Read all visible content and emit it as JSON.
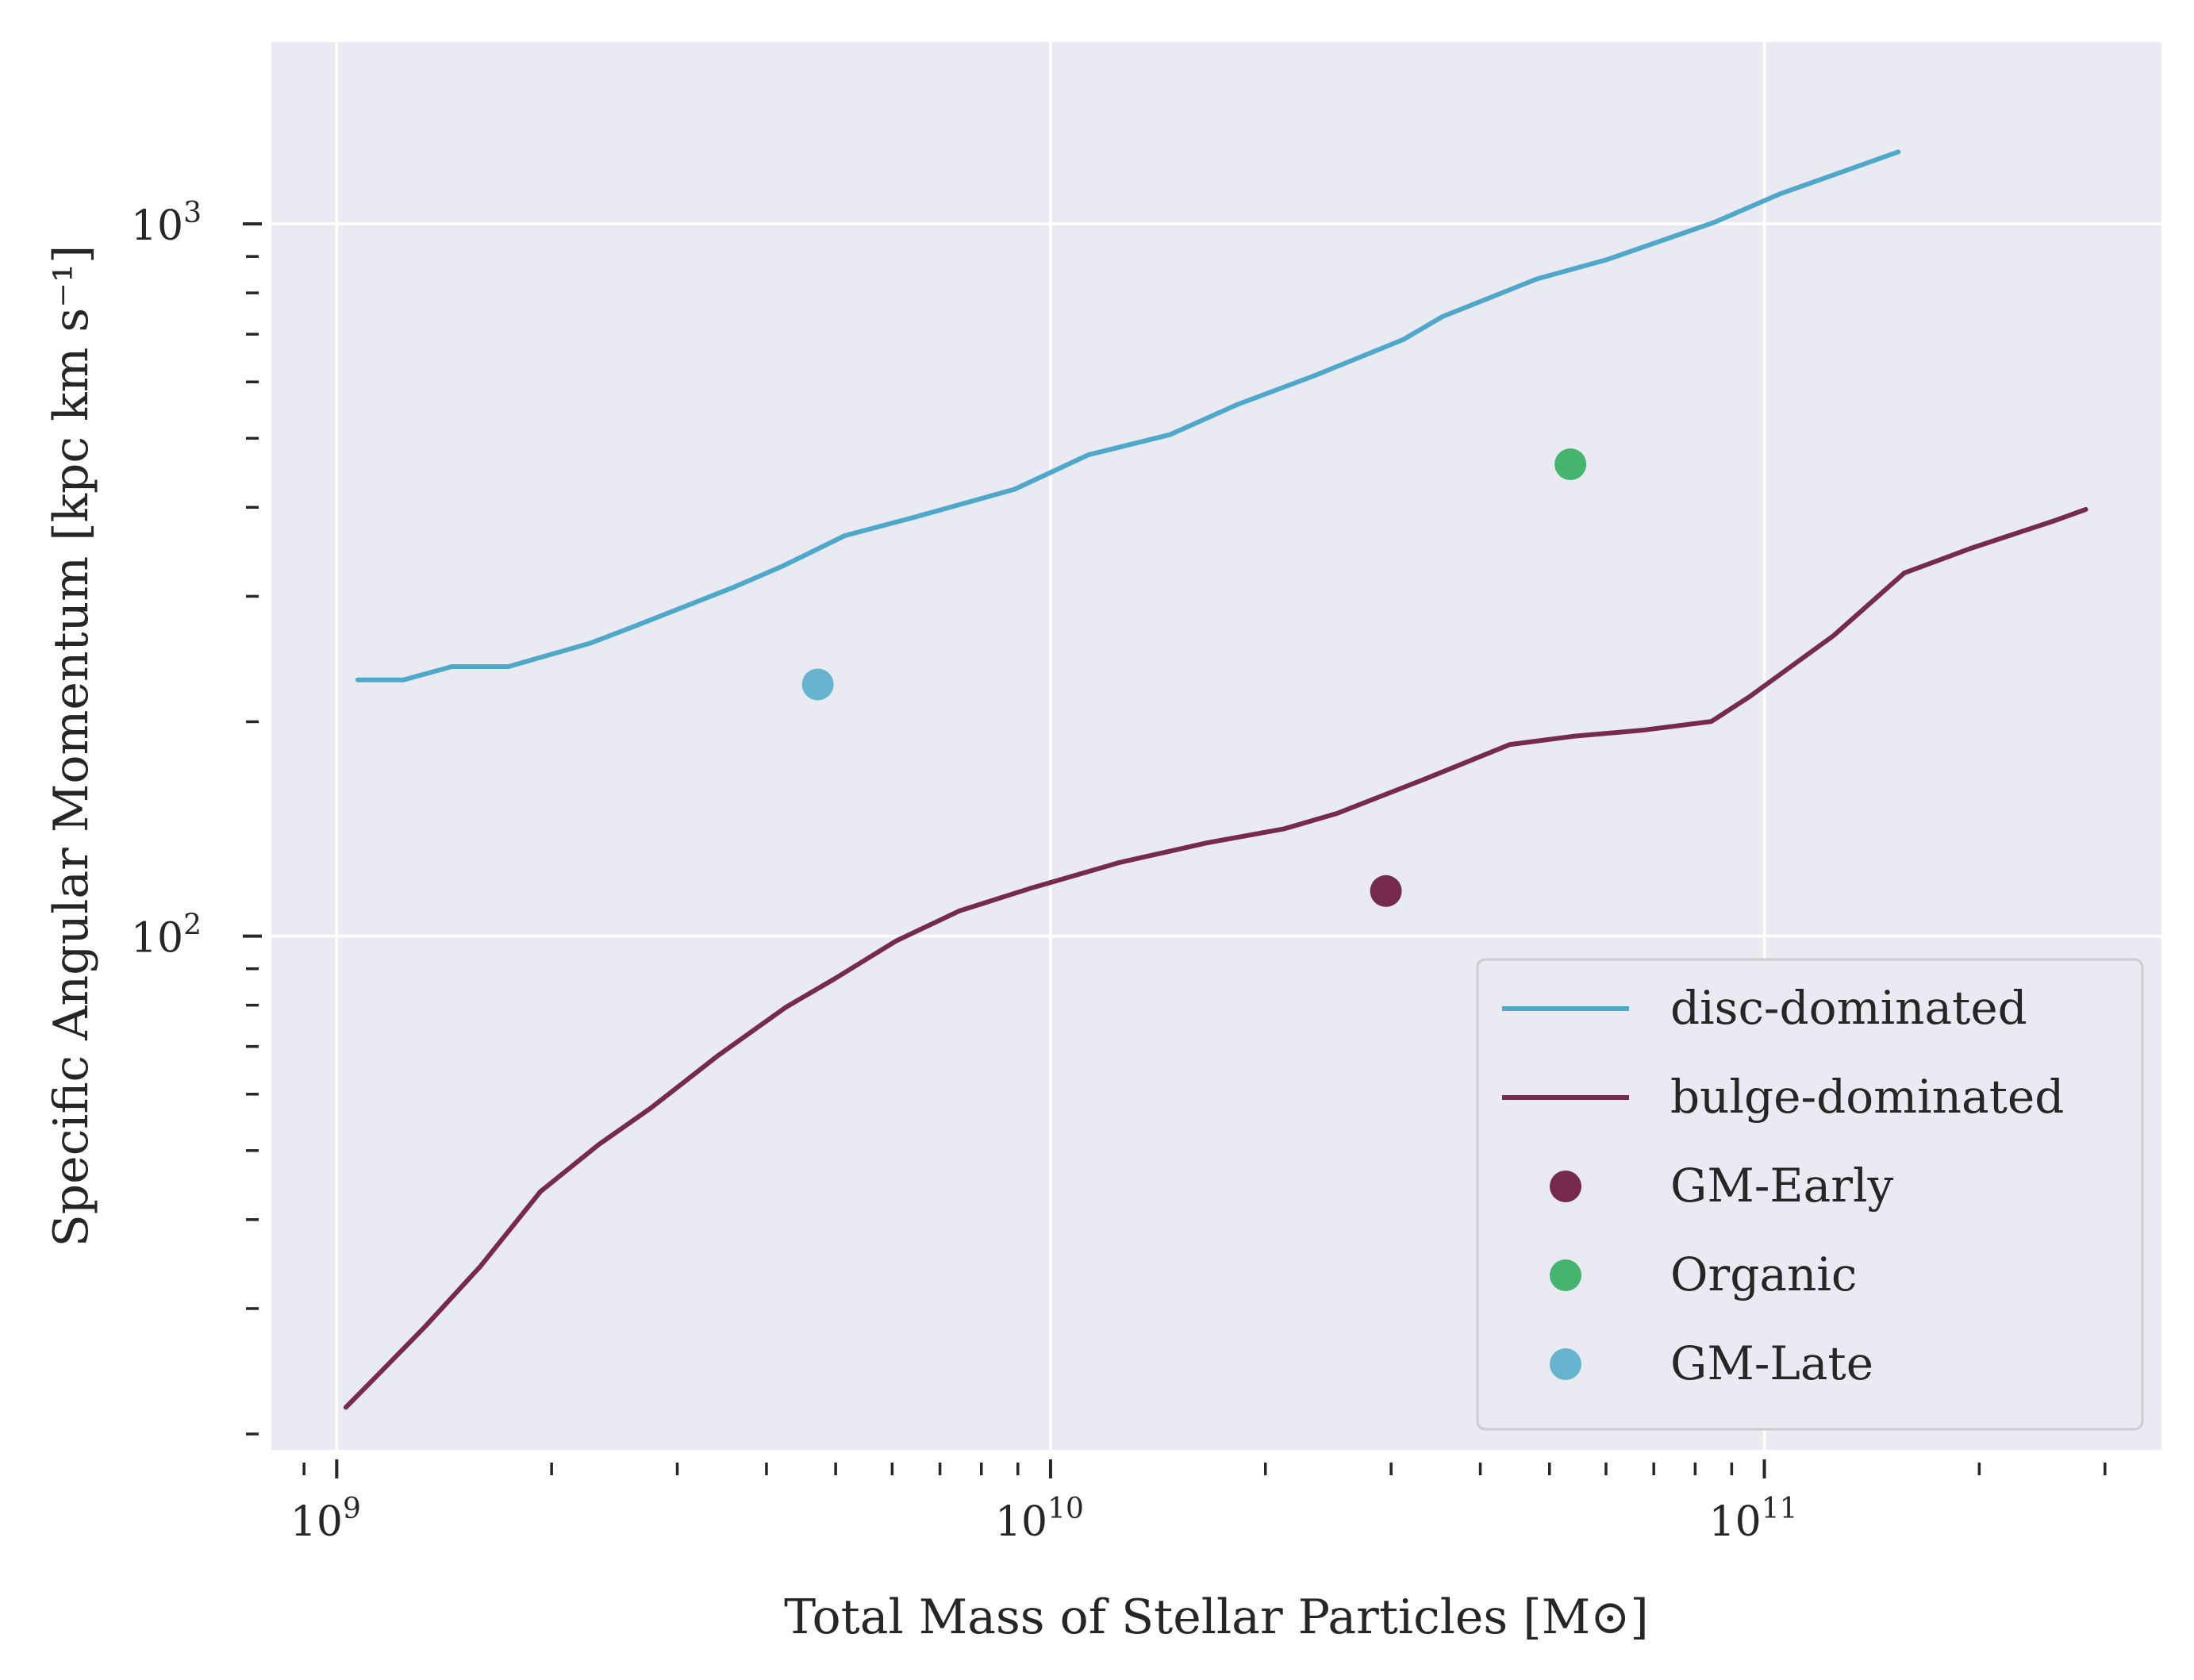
{
  "chart_data": {
    "type": "line",
    "title": "",
    "xlabel": "Total Mass of Stellar Particles [M⊙]",
    "ylabel": "Specific Angular Momentum [kpc km s⁻¹]",
    "xscale": "log",
    "yscale": "log",
    "xlim": [
      810000000.0,
      360000000000.0
    ],
    "ylim": [
      19,
      1800
    ],
    "grid": true,
    "background": "#eaeaf2",
    "legend_position": "lower-right",
    "x_ticks": [
      {
        "value": 1000000000.0,
        "base": "10",
        "exp": "9"
      },
      {
        "value": 10000000000.0,
        "base": "10",
        "exp": "10"
      },
      {
        "value": 100000000000.0,
        "base": "10",
        "exp": "11"
      }
    ],
    "y_ticks": [
      {
        "value": 100,
        "base": "10",
        "exp": "2"
      },
      {
        "value": 1000,
        "base": "10",
        "exp": "3"
      }
    ],
    "series": [
      {
        "name": "disc-dominated",
        "kind": "line",
        "color": "#4fa8cb",
        "points": [
          [
            1070000000.0,
            229
          ],
          [
            1240000000.0,
            229
          ],
          [
            1450000000.0,
            239
          ],
          [
            1740000000.0,
            239
          ],
          [
            2270000000.0,
            258
          ],
          [
            2630000000.0,
            273
          ],
          [
            3600000000.0,
            309
          ],
          [
            4220000000.0,
            331
          ],
          [
            5150000000.0,
            365
          ],
          [
            6480000000.0,
            388
          ],
          [
            8900000000.0,
            424
          ],
          [
            11300000000.0,
            474
          ],
          [
            14700000000.0,
            506
          ],
          [
            18300000000.0,
            558
          ],
          [
            23500000000.0,
            613
          ],
          [
            31200000000.0,
            688
          ],
          [
            35400000000.0,
            741
          ],
          [
            48000000000.0,
            837
          ],
          [
            60200000000.0,
            891
          ],
          [
            85300000000.0,
            1006
          ],
          [
            105000000000.0,
            1101
          ],
          [
            154000000000.0,
            1262
          ]
        ]
      },
      {
        "name": "bulge-dominated",
        "kind": "line",
        "color": "#752a4e",
        "points": [
          [
            1030000000.0,
            21.8
          ],
          [
            1160000000.0,
            24.6
          ],
          [
            1330000000.0,
            28.3
          ],
          [
            1590000000.0,
            34.4
          ],
          [
            1930000000.0,
            43.8
          ],
          [
            2330000000.0,
            51.0
          ],
          [
            2750000000.0,
            57.3
          ],
          [
            3430000000.0,
            68.1
          ],
          [
            4260000000.0,
            79.5
          ],
          [
            4980000000.0,
            87.1
          ],
          [
            6070000000.0,
            98.4
          ],
          [
            7450000000.0,
            108.5
          ],
          [
            9340000000.0,
            116.6
          ],
          [
            12500000000.0,
            126.9
          ],
          [
            16500000000.0,
            135.1
          ],
          [
            21200000000.0,
            141.4
          ],
          [
            25200000000.0,
            148.7
          ],
          [
            33500000000.0,
            166.3
          ],
          [
            44000000000.0,
            185.8
          ],
          [
            54000000000.0,
            190.8
          ],
          [
            67300000000.0,
            194.5
          ],
          [
            84300000000.0,
            200.2
          ],
          [
            95300000000.0,
            216.8
          ],
          [
            125000000000.0,
            264.2
          ],
          [
            157000000000.0,
            323.4
          ],
          [
            194000000000.0,
            349.9
          ],
          [
            256000000000.0,
            383.6
          ],
          [
            282000000000.0,
            397.3
          ]
        ]
      },
      {
        "name": "GM-Early",
        "kind": "point",
        "color": "#752a4e",
        "points": [
          [
            29500000000.0,
            115.7
          ]
        ]
      },
      {
        "name": "Organic",
        "kind": "point",
        "color": "#45b46f",
        "points": [
          [
            53500000000.0,
            459.7
          ]
        ]
      },
      {
        "name": "GM-Late",
        "kind": "point",
        "color": "#67b4d1",
        "points": [
          [
            4720000000.0,
            225.6
          ]
        ]
      }
    ]
  }
}
